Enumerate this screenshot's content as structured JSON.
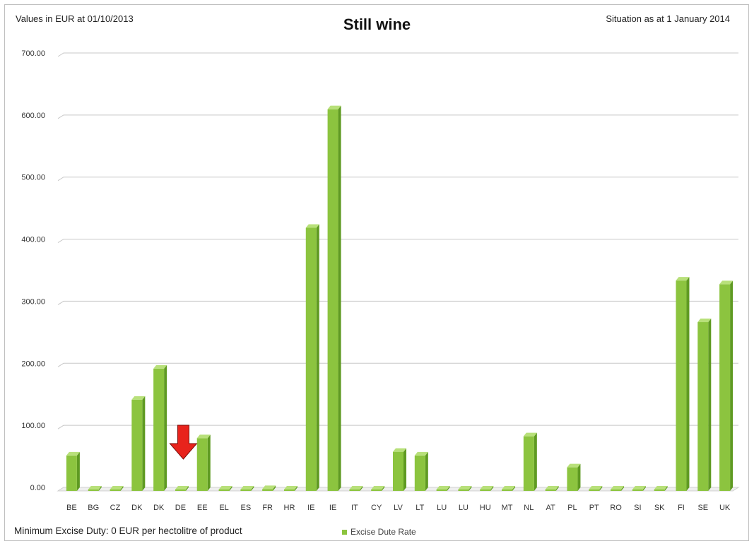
{
  "header": {
    "left_note": "Values in EUR at 01/10/2013",
    "title": "Still wine",
    "right_note": "Situation as at 1 January 2014"
  },
  "footer": {
    "note": "Minimum Excise Duty: 0 EUR per hectolitre of product"
  },
  "colors": {
    "bar_front": "#8cc43f",
    "bar_side": "#5f9a22",
    "bar_top": "#b8e07a",
    "gridline": "#c8c8c8",
    "arrow": "#e8231c"
  },
  "annotations": [
    {
      "name": "decrease-arrow",
      "shape": "down-arrow",
      "category_index": 5
    }
  ],
  "chart_data": {
    "type": "bar",
    "title": "Still wine",
    "xlabel": "",
    "ylabel": "",
    "categories": [
      "BE",
      "BG",
      "CZ",
      "DK",
      "DK",
      "DE",
      "EE",
      "EL",
      "ES",
      "FR",
      "HR",
      "IE",
      "IE",
      "IT",
      "CY",
      "LV",
      "LT",
      "LU",
      "LU",
      "HU",
      "MT",
      "NL",
      "AT",
      "PL",
      "PT",
      "RO",
      "SI",
      "SK",
      "FI",
      "SE",
      "UK"
    ],
    "y_ticks": [
      "0.00",
      "100.00",
      "200.00",
      "300.00",
      "400.00",
      "500.00",
      "600.00",
      "700.00"
    ],
    "ylim": [
      0,
      700
    ],
    "grid": true,
    "legend_position": "bottom",
    "series": [
      {
        "name": "Excise Dute Rate",
        "values": [
          57,
          0,
          0,
          147,
          197,
          0,
          85,
          0,
          0,
          3,
          0,
          424,
          615,
          0,
          0,
          63,
          57,
          0,
          0,
          0,
          0,
          88,
          0,
          38,
          0,
          0,
          0,
          0,
          339,
          272,
          333
        ]
      }
    ]
  }
}
